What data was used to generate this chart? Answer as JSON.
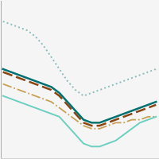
{
  "x": [
    0,
    1,
    2,
    3,
    4,
    5,
    6,
    7,
    8,
    9,
    10,
    11,
    12,
    13,
    14,
    15,
    16,
    17,
    18,
    19
  ],
  "series": {
    "dotted_teal": [
      0.78,
      0.77,
      0.76,
      0.75,
      0.73,
      0.7,
      0.66,
      0.62,
      0.58,
      0.55,
      0.53,
      0.54,
      0.55,
      0.56,
      0.57,
      0.58,
      0.59,
      0.6,
      0.61,
      0.62
    ],
    "solid_dark_teal": [
      0.62,
      0.61,
      0.6,
      0.59,
      0.58,
      0.57,
      0.56,
      0.54,
      0.51,
      0.48,
      0.45,
      0.44,
      0.44,
      0.45,
      0.46,
      0.47,
      0.48,
      0.49,
      0.5,
      0.51
    ],
    "dashed_brown": [
      0.61,
      0.6,
      0.59,
      0.58,
      0.57,
      0.56,
      0.55,
      0.53,
      0.5,
      0.47,
      0.44,
      0.43,
      0.43,
      0.44,
      0.45,
      0.46,
      0.47,
      0.48,
      0.49,
      0.5
    ],
    "dashdot_tan": [
      0.57,
      0.56,
      0.55,
      0.54,
      0.53,
      0.52,
      0.51,
      0.49,
      0.47,
      0.45,
      0.43,
      0.42,
      0.42,
      0.43,
      0.44,
      0.44,
      0.45,
      0.45,
      0.46,
      0.46
    ],
    "solid_light_teal": [
      0.53,
      0.52,
      0.51,
      0.5,
      0.49,
      0.48,
      0.47,
      0.46,
      0.43,
      0.4,
      0.37,
      0.36,
      0.36,
      0.37,
      0.38,
      0.4,
      0.42,
      0.44,
      0.45,
      0.46
    ]
  },
  "colors": {
    "dotted_teal": "#8bbcbc",
    "solid_dark_teal": "#007070",
    "dashed_brown": "#8B4513",
    "dashdot_tan": "#c8a055",
    "solid_light_teal": "#6dcfbf"
  },
  "background_color": "#f5f5f5",
  "grid_color": "#d0d0d0",
  "ylim": [
    0.32,
    0.85
  ],
  "xlim": [
    -0.3,
    19.3
  ]
}
